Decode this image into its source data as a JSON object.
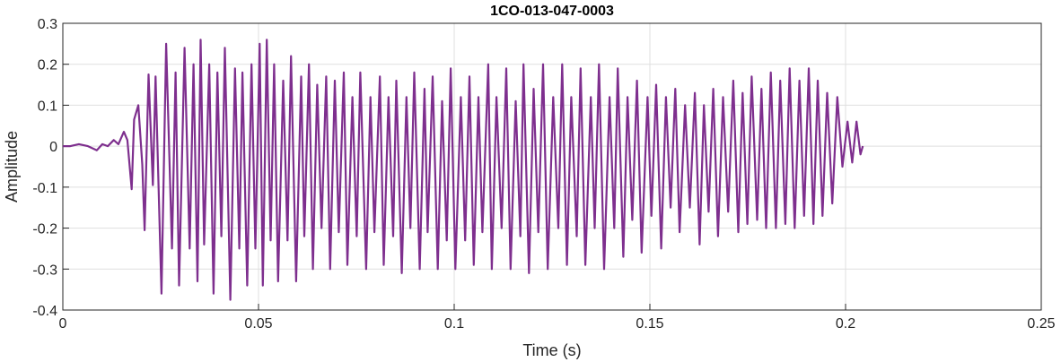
{
  "chart_data": {
    "type": "line",
    "title": "1CO-013-047-0003",
    "xlabel": "Time (s)",
    "ylabel": "Amplitude",
    "xlim": [
      0,
      0.25
    ],
    "ylim": [
      -0.4,
      0.3
    ],
    "xticks": [
      0,
      0.05,
      0.1,
      0.15,
      0.2,
      0.25
    ],
    "xtick_labels": [
      "0",
      "0.05",
      "0.1",
      "0.15",
      "0.2",
      "0.25"
    ],
    "yticks": [
      -0.4,
      -0.3,
      -0.2,
      -0.1,
      0,
      0.1,
      0.2,
      0.3
    ],
    "ytick_labels": [
      "-0.4",
      "-0.3",
      "-0.2",
      "-0.1",
      "0",
      "0.1",
      "0.2",
      "0.3"
    ],
    "grid": true,
    "line_color": "#7E2F8E",
    "waveform_peaks": [
      [
        0.0,
        0.0
      ],
      [
        0.0019,
        0.0
      ],
      [
        0.0041,
        0.005
      ],
      [
        0.0064,
        0.0
      ],
      [
        0.0087,
        -0.01
      ],
      [
        0.0101,
        0.005
      ],
      [
        0.0115,
        0.0
      ],
      [
        0.013,
        0.015
      ],
      [
        0.0142,
        0.005
      ],
      [
        0.0156,
        0.035
      ],
      [
        0.0165,
        0.015
      ],
      [
        0.0176,
        -0.105
      ],
      [
        0.0182,
        0.065
      ],
      [
        0.0193,
        0.1
      ],
      [
        0.0203,
        -0.045
      ],
      [
        0.0209,
        -0.205
      ],
      [
        0.0219,
        0.175
      ],
      [
        0.023,
        -0.095
      ],
      [
        0.0237,
        0.17
      ],
      [
        0.0252,
        -0.36
      ],
      [
        0.0264,
        0.25
      ],
      [
        0.0279,
        -0.25
      ],
      [
        0.0288,
        0.18
      ],
      [
        0.0297,
        -0.34
      ],
      [
        0.0311,
        0.24
      ],
      [
        0.0324,
        -0.25
      ],
      [
        0.0334,
        0.2
      ],
      [
        0.0344,
        -0.33
      ],
      [
        0.0352,
        0.26
      ],
      [
        0.0361,
        -0.24
      ],
      [
        0.0374,
        0.2
      ],
      [
        0.0385,
        -0.36
      ],
      [
        0.0395,
        0.18
      ],
      [
        0.0405,
        -0.22
      ],
      [
        0.0414,
        0.24
      ],
      [
        0.0428,
        -0.375
      ],
      [
        0.044,
        0.19
      ],
      [
        0.0451,
        -0.25
      ],
      [
        0.0459,
        0.18
      ],
      [
        0.0471,
        -0.34
      ],
      [
        0.0482,
        0.2
      ],
      [
        0.0492,
        -0.25
      ],
      [
        0.0503,
        0.25
      ],
      [
        0.0511,
        -0.34
      ],
      [
        0.0521,
        0.26
      ],
      [
        0.0531,
        -0.23
      ],
      [
        0.054,
        0.2
      ],
      [
        0.055,
        -0.33
      ],
      [
        0.0563,
        0.16
      ],
      [
        0.0574,
        -0.23
      ],
      [
        0.0583,
        0.22
      ],
      [
        0.0596,
        -0.33
      ],
      [
        0.0609,
        0.17
      ],
      [
        0.0617,
        -0.22
      ],
      [
        0.0629,
        0.2
      ],
      [
        0.0639,
        -0.3
      ],
      [
        0.065,
        0.15
      ],
      [
        0.0661,
        -0.2
      ],
      [
        0.0673,
        0.17
      ],
      [
        0.0683,
        -0.3
      ],
      [
        0.0695,
        0.16
      ],
      [
        0.0705,
        -0.21
      ],
      [
        0.0718,
        0.18
      ],
      [
        0.0727,
        -0.29
      ],
      [
        0.074,
        0.12
      ],
      [
        0.0751,
        -0.22
      ],
      [
        0.076,
        0.18
      ],
      [
        0.0775,
        -0.3
      ],
      [
        0.0786,
        0.12
      ],
      [
        0.0796,
        -0.21
      ],
      [
        0.081,
        0.17
      ],
      [
        0.082,
        -0.29
      ],
      [
        0.0832,
        0.12
      ],
      [
        0.0844,
        -0.22
      ],
      [
        0.0852,
        0.16
      ],
      [
        0.0866,
        -0.31
      ],
      [
        0.0878,
        0.12
      ],
      [
        0.0888,
        -0.2
      ],
      [
        0.0898,
        0.18
      ],
      [
        0.0912,
        -0.3
      ],
      [
        0.0924,
        0.14
      ],
      [
        0.0932,
        -0.21
      ],
      [
        0.0945,
        0.17
      ],
      [
        0.0958,
        -0.3
      ],
      [
        0.0969,
        0.11
      ],
      [
        0.0981,
        -0.23
      ],
      [
        0.0991,
        0.19
      ],
      [
        0.1003,
        -0.3
      ],
      [
        0.1017,
        0.12
      ],
      [
        0.1028,
        -0.23
      ],
      [
        0.1039,
        0.17
      ],
      [
        0.105,
        -0.29
      ],
      [
        0.1062,
        0.12
      ],
      [
        0.1072,
        -0.21
      ],
      [
        0.1087,
        0.2
      ],
      [
        0.1096,
        -0.3
      ],
      [
        0.1108,
        0.12
      ],
      [
        0.1121,
        -0.2
      ],
      [
        0.1133,
        0.19
      ],
      [
        0.1144,
        -0.3
      ],
      [
        0.1157,
        0.11
      ],
      [
        0.1169,
        -0.22
      ],
      [
        0.1177,
        0.2
      ],
      [
        0.1191,
        -0.31
      ],
      [
        0.1203,
        0.14
      ],
      [
        0.1215,
        -0.21
      ],
      [
        0.1227,
        0.2
      ],
      [
        0.1239,
        -0.3
      ],
      [
        0.1253,
        0.12
      ],
      [
        0.1266,
        -0.2
      ],
      [
        0.1276,
        0.2
      ],
      [
        0.1288,
        -0.29
      ],
      [
        0.1299,
        0.12
      ],
      [
        0.1313,
        -0.22
      ],
      [
        0.1323,
        0.19
      ],
      [
        0.1335,
        -0.29
      ],
      [
        0.1349,
        0.12
      ],
      [
        0.1359,
        -0.2
      ],
      [
        0.137,
        0.2
      ],
      [
        0.1383,
        -0.3
      ],
      [
        0.1397,
        0.12
      ],
      [
        0.1409,
        -0.2
      ],
      [
        0.1418,
        0.19
      ],
      [
        0.1432,
        -0.27
      ],
      [
        0.1443,
        0.12
      ],
      [
        0.1455,
        -0.18
      ],
      [
        0.1467,
        0.16
      ],
      [
        0.1479,
        -0.26
      ],
      [
        0.1494,
        0.12
      ],
      [
        0.1504,
        -0.17
      ],
      [
        0.1516,
        0.15
      ],
      [
        0.1529,
        -0.25
      ],
      [
        0.1541,
        0.12
      ],
      [
        0.1553,
        -0.15
      ],
      [
        0.1565,
        0.14
      ],
      [
        0.1576,
        -0.21
      ],
      [
        0.159,
        0.1
      ],
      [
        0.1602,
        -0.15
      ],
      [
        0.1615,
        0.13
      ],
      [
        0.1627,
        -0.24
      ],
      [
        0.1638,
        0.1
      ],
      [
        0.165,
        -0.16
      ],
      [
        0.1662,
        0.14
      ],
      [
        0.1674,
        -0.22
      ],
      [
        0.1687,
        0.12
      ],
      [
        0.17,
        -0.16
      ],
      [
        0.1713,
        0.16
      ],
      [
        0.1726,
        -0.21
      ],
      [
        0.1737,
        0.13
      ],
      [
        0.1749,
        -0.19
      ],
      [
        0.176,
        0.17
      ],
      [
        0.1774,
        -0.18
      ],
      [
        0.1785,
        0.14
      ],
      [
        0.1797,
        -0.2
      ],
      [
        0.1809,
        0.18
      ],
      [
        0.1822,
        -0.2
      ],
      [
        0.1833,
        0.16
      ],
      [
        0.1846,
        -0.19
      ],
      [
        0.1857,
        0.19
      ],
      [
        0.187,
        -0.2
      ],
      [
        0.1882,
        0.16
      ],
      [
        0.1894,
        -0.17
      ],
      [
        0.1906,
        0.19
      ],
      [
        0.1918,
        -0.19
      ],
      [
        0.1929,
        0.16
      ],
      [
        0.1941,
        -0.17
      ],
      [
        0.1953,
        0.13
      ],
      [
        0.1966,
        -0.14
      ],
      [
        0.1979,
        0.12
      ],
      [
        0.1992,
        -0.05
      ],
      [
        0.2005,
        0.06
      ],
      [
        0.2017,
        -0.04
      ],
      [
        0.2028,
        0.06
      ],
      [
        0.2038,
        -0.02
      ],
      [
        0.2044,
        0.0
      ]
    ]
  }
}
